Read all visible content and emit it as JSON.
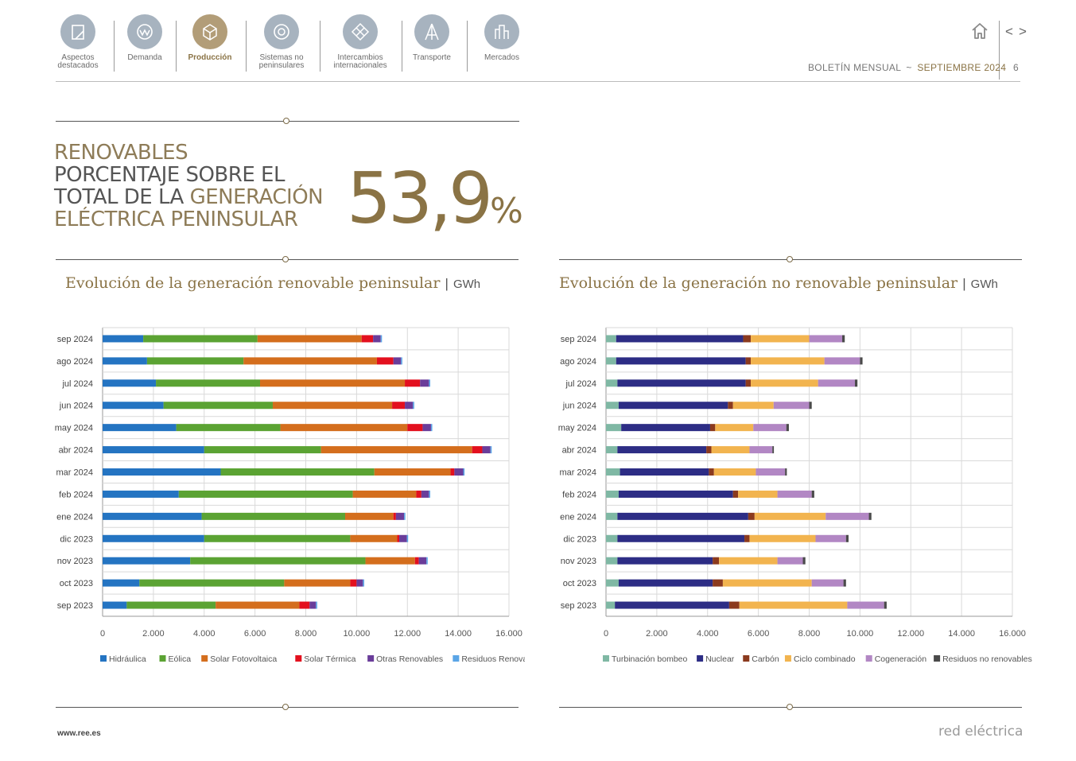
{
  "nav": {
    "items": [
      {
        "label": "Aspectos\ndestacados",
        "icon": "highlights-icon",
        "active": false
      },
      {
        "label": "Demanda",
        "icon": "demand-icon",
        "active": false
      },
      {
        "label": "Producción",
        "icon": "production-icon",
        "active": true
      },
      {
        "label": "Sistemas no\npeninsulares",
        "icon": "non-peninsular-icon",
        "active": false
      },
      {
        "label": "Intercambios\ninternacionales",
        "icon": "exchanges-icon",
        "active": false
      },
      {
        "label": "Transporte",
        "icon": "transport-icon",
        "active": false
      },
      {
        "label": "Mercados",
        "icon": "markets-icon",
        "active": false
      }
    ],
    "prev": "<",
    "next": ">"
  },
  "header": {
    "bulletin": "BOLETÍN MENSUAL",
    "separator": "~",
    "month": "SEPTIEMBRE 2024",
    "page": "6"
  },
  "headline": {
    "line1": "RENOVABLES",
    "line2": "PORCENTAJE SOBRE EL",
    "line3_a": "TOTAL DE LA ",
    "line3_b": "GENERACIÓN",
    "line4": "ELÉCTRICA PENINSULAR",
    "value": "53,9",
    "unit": "%"
  },
  "footer": {
    "url": "www.ree.es",
    "brand": "red eléctrica"
  },
  "colors": {
    "gold": "#8a7345",
    "gridline": "#d9d9d9"
  },
  "chart_data": [
    {
      "type": "bar",
      "orientation": "horizontal",
      "stacked": true,
      "title": "Evolución de la generación renovable peninsular",
      "unit": "GWh",
      "categories": [
        "sep 2024",
        "ago 2024",
        "jul 2024",
        "jun 2024",
        "may 2024",
        "abr 2024",
        "mar 2024",
        "feb 2024",
        "ene 2024",
        "dic 2023",
        "nov 2023",
        "oct 2023",
        "sep 2023"
      ],
      "xlim": [
        0,
        16000
      ],
      "xticks": [
        0,
        2000,
        4000,
        6000,
        8000,
        10000,
        12000,
        14000,
        16000
      ],
      "xtick_labels": [
        "0",
        "2.000",
        "4.000",
        "6.000",
        "8.000",
        "10.000",
        "12.000",
        "14.000",
        "16.000"
      ],
      "legend_position": "bottom",
      "series": [
        {
          "name": "Hidráulica",
          "color": "#2474c2",
          "values": [
            1600,
            1750,
            2100,
            2400,
            2900,
            4000,
            4650,
            3000,
            3900,
            4000,
            3450,
            1450,
            950
          ]
        },
        {
          "name": "Eólica",
          "color": "#5ba333",
          "values": [
            4500,
            3800,
            4100,
            4300,
            4100,
            4600,
            6050,
            6850,
            5650,
            5750,
            6900,
            5700,
            3500
          ]
        },
        {
          "name": "Solar Fotovoltaica",
          "color": "#d46e1d",
          "values": [
            4100,
            5250,
            5700,
            4700,
            5000,
            5950,
            3000,
            2500,
            1900,
            1850,
            1950,
            2600,
            3300
          ]
        },
        {
          "name": "Solar Térmica",
          "color": "#e3101e",
          "values": [
            450,
            650,
            600,
            500,
            600,
            400,
            150,
            200,
            100,
            80,
            150,
            250,
            400
          ]
        },
        {
          "name": "Otras Renovables",
          "color": "#6a3d9a",
          "values": [
            300,
            300,
            350,
            320,
            330,
            320,
            350,
            300,
            320,
            300,
            300,
            250,
            250
          ]
        },
        {
          "name": "Residuos Renovables",
          "color": "#5aa5e6",
          "values": [
            50,
            50,
            50,
            50,
            50,
            50,
            50,
            50,
            50,
            50,
            50,
            50,
            50
          ]
        }
      ]
    },
    {
      "type": "bar",
      "orientation": "horizontal",
      "stacked": true,
      "title": "Evolución de la generación no renovable peninsular",
      "unit": "GWh",
      "categories": [
        "sep 2024",
        "ago 2024",
        "jul 2024",
        "jun 2024",
        "may 2024",
        "abr 2024",
        "mar 2024",
        "feb 2024",
        "ene 2024",
        "dic 2023",
        "nov 2023",
        "oct 2023",
        "sep 2023"
      ],
      "xlim": [
        0,
        16000
      ],
      "xticks": [
        0,
        2000,
        4000,
        6000,
        8000,
        10000,
        12000,
        14000,
        16000
      ],
      "xtick_labels": [
        "0",
        "2.000",
        "4.000",
        "6.000",
        "8.000",
        "10.000",
        "12.000",
        "14.000",
        "16.000"
      ],
      "legend_position": "bottom",
      "series": [
        {
          "name": "Turbinación bombeo",
          "color": "#7fb8a4",
          "values": [
            400,
            400,
            450,
            500,
            600,
            450,
            550,
            500,
            450,
            450,
            450,
            500,
            350
          ]
        },
        {
          "name": "Nuclear",
          "color": "#2d2d85",
          "values": [
            5000,
            5100,
            5050,
            4300,
            3500,
            3500,
            3500,
            4500,
            5150,
            5000,
            3750,
            3700,
            4500
          ]
        },
        {
          "name": "Carbón",
          "color": "#8b3a1e",
          "values": [
            300,
            200,
            200,
            200,
            200,
            200,
            200,
            200,
            250,
            200,
            250,
            400,
            400
          ]
        },
        {
          "name": "Ciclo combinado",
          "color": "#f2b44f",
          "values": [
            2300,
            2900,
            2650,
            1600,
            1500,
            1500,
            1650,
            1550,
            2800,
            2600,
            2300,
            3500,
            4250
          ]
        },
        {
          "name": "Cogeneración",
          "color": "#b287c4",
          "values": [
            1300,
            1400,
            1450,
            1400,
            1300,
            900,
            1150,
            1350,
            1700,
            1200,
            1000,
            1250,
            1450
          ]
        },
        {
          "name": "Residuos no renovables",
          "color": "#4a4a4a",
          "values": [
            100,
            100,
            100,
            100,
            100,
            60,
            70,
            100,
            100,
            100,
            100,
            100,
            100
          ]
        }
      ]
    }
  ]
}
